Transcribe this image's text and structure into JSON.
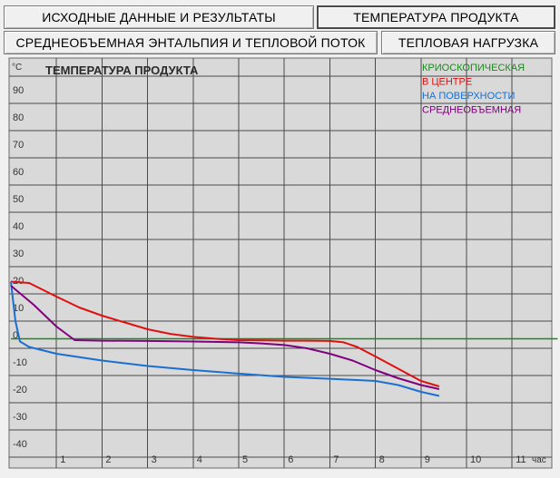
{
  "tabs": [
    {
      "label": "ИСХОДНЫЕ ДАННЫЕ И РЕЗУЛЬТАТЫ",
      "active": false
    },
    {
      "label": "ТЕМПЕРАТУРА ПРОДУКТА",
      "active": true
    },
    {
      "label": "СРЕДНЕОБЪЕМНАЯ ЭНТАЛЬПИЯ И ТЕПЛОВОЙ ПОТОК",
      "active": false
    },
    {
      "label": "ТЕПЛОВАЯ  НАГРУЗКА",
      "active": false
    }
  ],
  "chart_data": {
    "type": "line",
    "title": "ТЕМПЕРАТУРА ПРОДУКТА",
    "y_unit": "°C",
    "x_unit": "час",
    "xlim": [
      0,
      12
    ],
    "ylim": [
      -45,
      95
    ],
    "x_ticks": [
      1,
      2,
      3,
      4,
      5,
      6,
      7,
      8,
      9,
      10,
      11
    ],
    "y_ticks": [
      90,
      80,
      70,
      60,
      50,
      40,
      30,
      20,
      10,
      0,
      -10,
      -20,
      -30,
      -40
    ],
    "grid": true,
    "legend_position": "top-right",
    "background": "#d9d9d9",
    "series": [
      {
        "name": "КРИОСКОПИЧЕСКАЯ",
        "color": "#1a8a1a",
        "x": [
          0,
          12
        ],
        "y": [
          -1.5,
          -1.5
        ]
      },
      {
        "name": "В ЦЕНТРЕ",
        "color": "#e01010",
        "x": [
          0,
          0.4,
          1,
          1.5,
          2,
          2.5,
          3,
          3.5,
          4,
          4.5,
          5,
          5.5,
          6,
          6.5,
          7,
          7.3,
          7.6,
          8,
          8.5,
          9,
          9.4
        ],
        "y": [
          19.5,
          19,
          14,
          10,
          7,
          4.5,
          2,
          0.3,
          -0.8,
          -1.5,
          -2,
          -2.1,
          -2.2,
          -2.2,
          -2.3,
          -2.8,
          -4.5,
          -8,
          -12.5,
          -17,
          -19
        ]
      },
      {
        "name": "НА ПОВЕРХНОСТИ",
        "color": "#1a6fd0",
        "x": [
          0,
          0.1,
          0.2,
          0.4,
          1,
          2,
          3,
          4,
          5,
          6,
          7,
          7.5,
          8,
          8.5,
          9,
          9.4
        ],
        "y": [
          19.5,
          5,
          -2.5,
          -4.5,
          -7,
          -9.5,
          -11.5,
          -13,
          -14.3,
          -15.5,
          -16.2,
          -16.6,
          -17,
          -18.5,
          -21,
          -22.5
        ]
      },
      {
        "name": "СРЕДНЕОБЪЕМНАЯ",
        "color": "#800080",
        "x": [
          0,
          0.5,
          1,
          1.4,
          2,
          3,
          4,
          5,
          5.5,
          6,
          6.5,
          7,
          7.5,
          8,
          8.5,
          9,
          9.4
        ],
        "y": [
          18,
          11,
          3,
          -2,
          -2.2,
          -2.3,
          -2.5,
          -2.8,
          -3.2,
          -3.8,
          -5,
          -7,
          -9.5,
          -13,
          -16,
          -18.5,
          -20
        ]
      }
    ]
  }
}
